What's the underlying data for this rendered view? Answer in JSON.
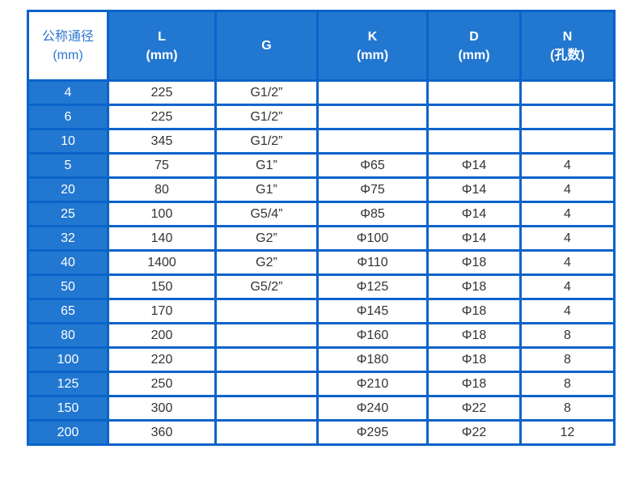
{
  "headers": [
    [
      "公称通径",
      "(mm)"
    ],
    [
      "L",
      "(mm)"
    ],
    [
      "G",
      ""
    ],
    [
      "K",
      "(mm)"
    ],
    [
      "D",
      "(mm)"
    ],
    [
      "N",
      "(孔数)"
    ]
  ],
  "rows": [
    [
      "4",
      "225",
      "G1/2”",
      "",
      "",
      ""
    ],
    [
      "6",
      "225",
      "G1/2”",
      "",
      "",
      ""
    ],
    [
      "10",
      "345",
      "G1/2”",
      "",
      "",
      ""
    ],
    [
      "5",
      "75",
      "G1”",
      "Φ65",
      "Φ14",
      "4"
    ],
    [
      "20",
      "80",
      "G1”",
      "Φ75",
      "Φ14",
      "4"
    ],
    [
      "25",
      "100",
      "G5/4”",
      "Φ85",
      "Φ14",
      "4"
    ],
    [
      "32",
      "140",
      "G2”",
      "Φ100",
      "Φ14",
      "4"
    ],
    [
      "40",
      "1400",
      "G2”",
      "Φ110",
      "Φ18",
      "4"
    ],
    [
      "50",
      "150",
      "G5/2”",
      "Φ125",
      "Φ18",
      "4"
    ],
    [
      "65",
      "170",
      "",
      "Φ145",
      "Φ18",
      "4"
    ],
    [
      "80",
      "200",
      "",
      "Φ160",
      "Φ18",
      "8"
    ],
    [
      "100",
      "220",
      "",
      "Φ180",
      "Φ18",
      "8"
    ],
    [
      "125",
      "250",
      "",
      "Φ210",
      "Φ18",
      "8"
    ],
    [
      "150",
      "300",
      "",
      "Φ240",
      "Φ22",
      "8"
    ],
    [
      "200",
      "360",
      "",
      "Φ295",
      "Φ22",
      "12"
    ]
  ],
  "colors": {
    "header_bg": "#2277d0",
    "border": "#0a63c9"
  }
}
